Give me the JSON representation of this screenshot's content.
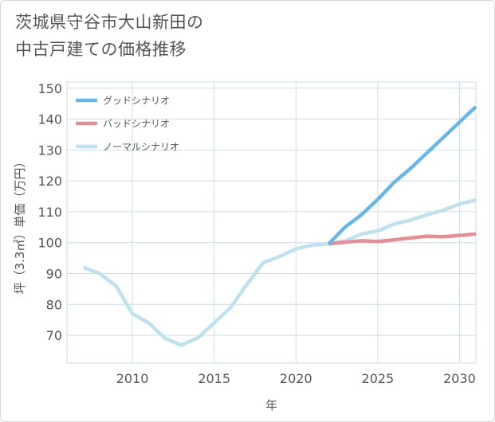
{
  "chart_data": {
    "type": "line",
    "title_lines": [
      "茨城県守谷市大山新田の",
      "中古戸建ての価格推移"
    ],
    "xlabel": "年",
    "ylabel": "坪（3.3㎡）単価（万円）",
    "xlim": [
      2006,
      2031
    ],
    "ylim": [
      61,
      152
    ],
    "x_ticks": [
      2010,
      2015,
      2020,
      2025,
      2030
    ],
    "y_ticks": [
      70,
      80,
      90,
      100,
      110,
      120,
      130,
      140,
      150
    ],
    "grid": true,
    "legend_position": "top-left",
    "series": [
      {
        "name": "グッドシナリオ",
        "color": "#6ab6e6",
        "points": [
          [
            2022,
            99.6
          ],
          [
            2023,
            105
          ],
          [
            2024,
            109
          ],
          [
            2025,
            114
          ],
          [
            2026,
            119.5
          ],
          [
            2027,
            124
          ],
          [
            2028,
            129
          ],
          [
            2029,
            134
          ],
          [
            2030,
            139
          ],
          [
            2031,
            144
          ]
        ]
      },
      {
        "name": "バッドシナリオ",
        "color": "#e48f95",
        "points": [
          [
            2022,
            99.6
          ],
          [
            2023,
            100.1
          ],
          [
            2024,
            100.6
          ],
          [
            2025,
            100.4
          ],
          [
            2026,
            100.9
          ],
          [
            2027,
            101.5
          ],
          [
            2028,
            102.1
          ],
          [
            2029,
            101.9
          ],
          [
            2030,
            102.3
          ],
          [
            2031,
            102.8
          ]
        ]
      },
      {
        "name": "ノーマルシナリオ",
        "color": "#bfe0ef",
        "points": [
          [
            2007,
            92
          ],
          [
            2008,
            90
          ],
          [
            2009,
            86
          ],
          [
            2010,
            77
          ],
          [
            2011,
            74
          ],
          [
            2012,
            69
          ],
          [
            2013,
            66.8
          ],
          [
            2014,
            69.2
          ],
          [
            2015,
            74
          ],
          [
            2016,
            79
          ],
          [
            2017,
            86.5
          ],
          [
            2018,
            93.5
          ],
          [
            2019,
            95.5
          ],
          [
            2020,
            98
          ],
          [
            2021,
            99.2
          ],
          [
            2022,
            99.6
          ],
          [
            2023,
            100.6
          ],
          [
            2024,
            102.8
          ],
          [
            2025,
            103.8
          ],
          [
            2026,
            106
          ],
          [
            2027,
            107.3
          ],
          [
            2028,
            109
          ],
          [
            2029,
            110.5
          ],
          [
            2030,
            112.5
          ],
          [
            2031,
            113.8
          ]
        ]
      }
    ]
  }
}
